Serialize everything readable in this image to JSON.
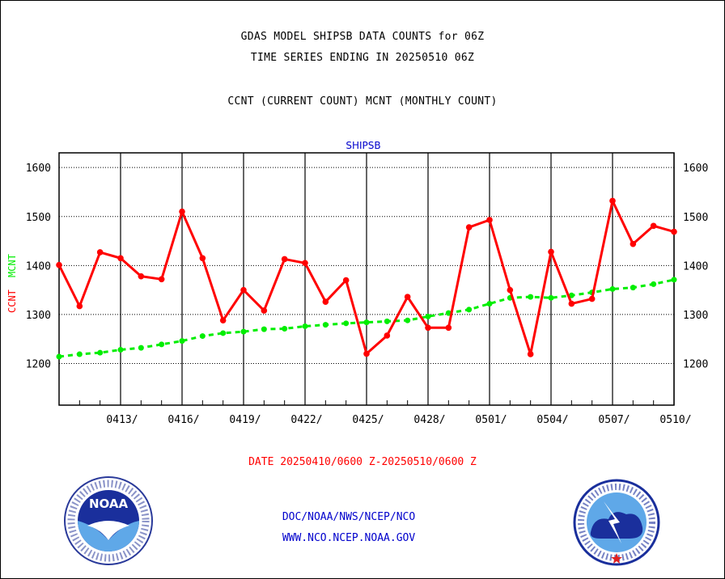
{
  "page": {
    "title_line1": "GDAS MODEL SHIPSB DATA COUNTS for 06Z",
    "title_line2": "TIME SERIES ENDING IN 20250510 06Z",
    "title_line3": "CCNT (CURRENT COUNT) MCNT (MONTHLY COUNT)",
    "date_range": "DATE 20250410/0600 Z-20250510/0600 Z",
    "credit_org": "DOC/NOAA/NWS/NCEP/NCO",
    "credit_url": "WWW.NCO.NCEP.NOAA.GOV",
    "noaa_logo_text": "NOAA",
    "nws_logo_alt": "NATIONAL WEATHER SERVICE"
  },
  "colors": {
    "ccnt": "#ff0000",
    "mcnt": "#00ee00",
    "panel_title": "#0000cc",
    "footer_text": "#0000cc",
    "date_text": "#ff0000"
  },
  "chart_data": {
    "type": "line",
    "title": "SHIPSB",
    "ylabel_ccnt": "CCNT",
    "ylabel_mcnt": "MCNT",
    "ylim": [
      1115,
      1630
    ],
    "yticks": [
      1200,
      1300,
      1400,
      1500,
      1600
    ],
    "grid": true,
    "xlabel_ticks": [
      "0413/",
      "0416/",
      "0419/",
      "0422/",
      "0425/",
      "0428/",
      "0501/",
      "0504/",
      "0507/",
      "0510/"
    ],
    "x": [
      "0410",
      "0411",
      "0412",
      "0413",
      "0414",
      "0415",
      "0416",
      "0417",
      "0418",
      "0419",
      "0420",
      "0421",
      "0422",
      "0423",
      "0424",
      "0425",
      "0426",
      "0427",
      "0428",
      "0429",
      "0430",
      "0501",
      "0502",
      "0503",
      "0504",
      "0505",
      "0506",
      "0507",
      "0508",
      "0509",
      "0510"
    ],
    "series": [
      {
        "name": "CCNT",
        "values": [
          1401,
          1317,
          1427,
          1415,
          1378,
          1372,
          1510,
          1415,
          1288,
          1350,
          1308,
          1413,
          1405,
          1326,
          1370,
          1220,
          1257,
          1336,
          1273,
          1273,
          1478,
          1493,
          1350,
          1219,
          1428,
          1322,
          1332,
          1532,
          1444,
          1481,
          1469
        ]
      },
      {
        "name": "MCNT",
        "values": [
          1214,
          1219,
          1222,
          1228,
          1232,
          1239,
          1246,
          1256,
          1262,
          1265,
          1270,
          1271,
          1276,
          1279,
          1282,
          1284,
          1286,
          1288,
          1296,
          1303,
          1310,
          1322,
          1334,
          1336,
          1334,
          1339,
          1345,
          1352,
          1355,
          1362,
          1371
        ]
      }
    ]
  }
}
